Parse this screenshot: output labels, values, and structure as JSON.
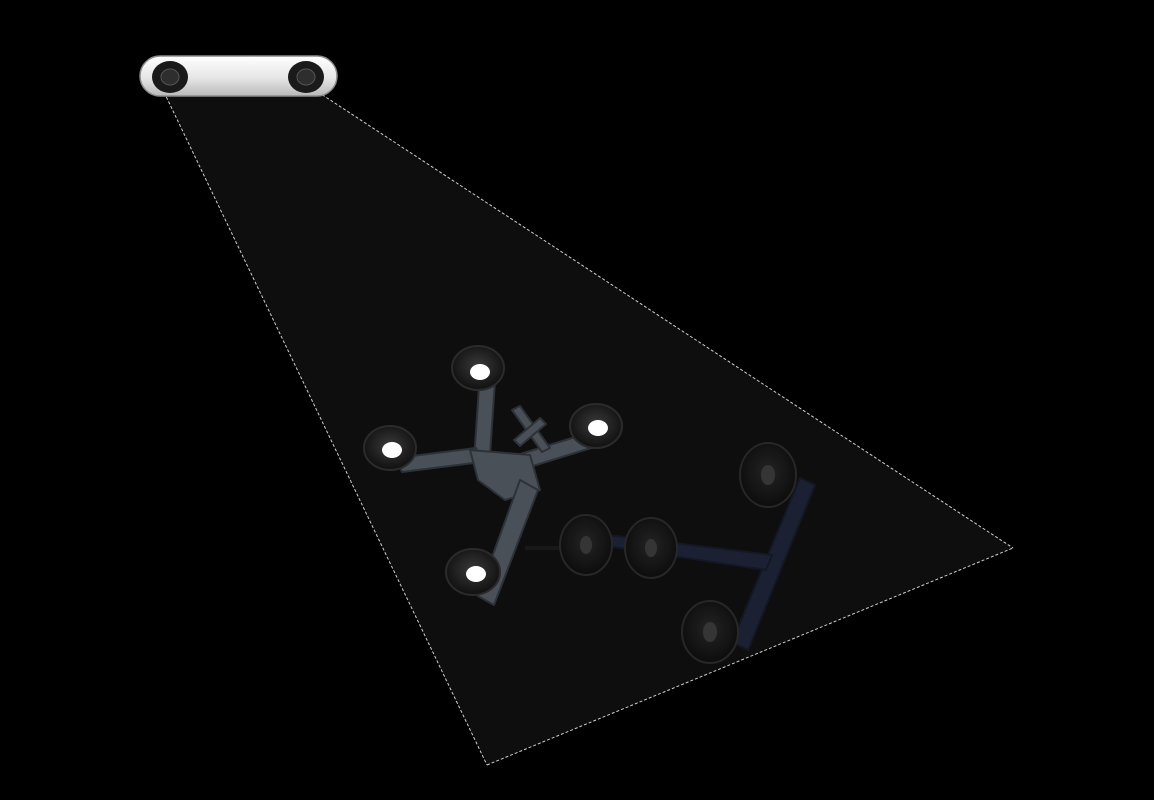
{
  "scene": {
    "background_color": "#000000",
    "frustum": {
      "fill_color": "#0e0e0e",
      "outline_color": "#d0d0d0",
      "outline_style": "dashed"
    },
    "camera": {
      "icon": "stereo-camera-icon",
      "body_color": "#e9e9e9",
      "lens_color": "#1a1a1a"
    },
    "tracker_front": {
      "icon": "four-sphere-tracker-icon",
      "frame_color": "#4a5058",
      "marker_color": "#1b1b1b",
      "marker_highlight": "#ffffff"
    },
    "tracker_back": {
      "icon": "t-shaped-tracker-icon",
      "frame_color": "#1d2438",
      "marker_color": "#1a1a1a"
    }
  }
}
